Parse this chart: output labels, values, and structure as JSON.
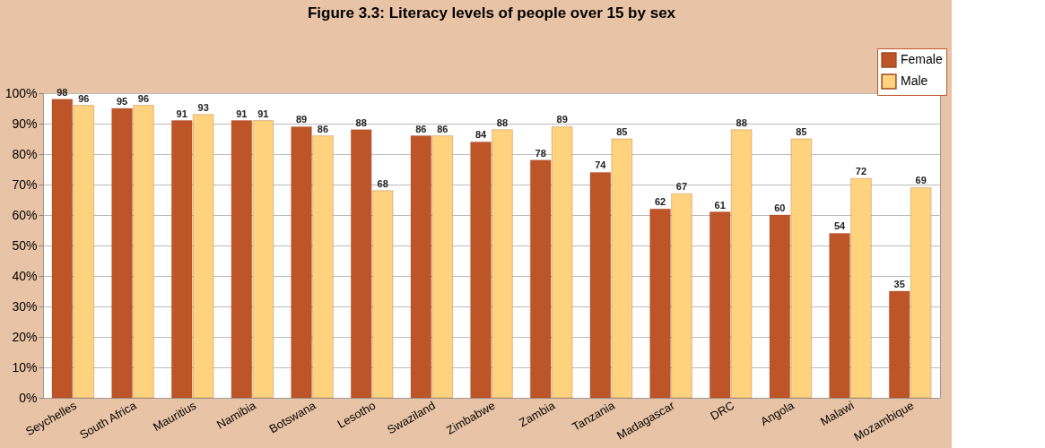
{
  "chart_data": {
    "type": "bar",
    "title": "Figure 3.3: Literacy levels of people over 15 by sex",
    "categories": [
      "Seychelles",
      "South Africa",
      "Mauritius",
      "Namibia",
      "Botswana",
      "Lesotho",
      "Swaziland",
      "Zimbabwe",
      "Zambia",
      "Tanzania",
      "Madagascar",
      "DRC",
      "Angola",
      "Malawi",
      "Mozambique"
    ],
    "series": [
      {
        "name": "Female",
        "color": "#bd5528",
        "values": [
          98,
          95,
          91,
          91,
          89,
          88,
          86,
          84,
          78,
          74,
          62,
          61,
          60,
          54,
          35
        ]
      },
      {
        "name": "Male",
        "color": "#ffd27d",
        "values": [
          96,
          96,
          93,
          91,
          86,
          68,
          86,
          88,
          89,
          85,
          67,
          88,
          85,
          72,
          69
        ]
      }
    ],
    "ylim": [
      0,
      100
    ],
    "yticks": [
      {
        "value": 0,
        "label": "0%"
      },
      {
        "value": 10,
        "label": "10%"
      },
      {
        "value": 20,
        "label": "20%"
      },
      {
        "value": 30,
        "label": "30%"
      },
      {
        "value": 40,
        "label": "40%"
      },
      {
        "value": 50,
        "label": "50%"
      },
      {
        "value": 60,
        "label": "60%"
      },
      {
        "value": 70,
        "label": "70%"
      },
      {
        "value": 80,
        "label": "80%"
      },
      {
        "value": 90,
        "label": "90%"
      },
      {
        "value": 100,
        "label": "100%"
      }
    ],
    "grid": "y",
    "legend": "top right",
    "data_labels": true
  }
}
